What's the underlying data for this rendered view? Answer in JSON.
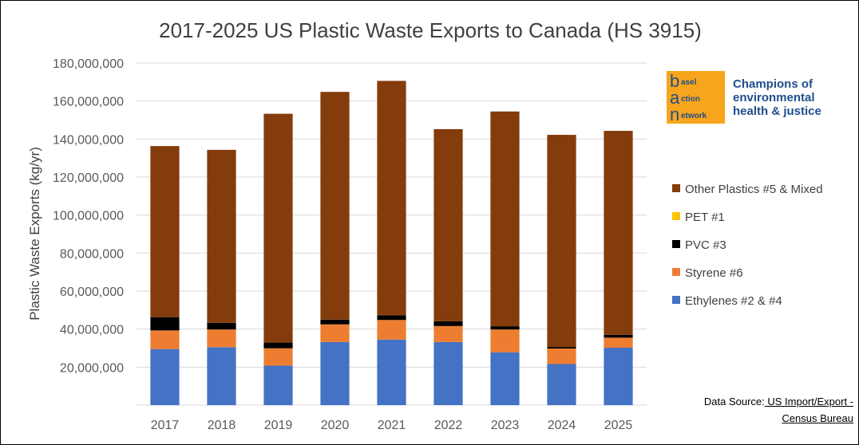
{
  "chart_data": {
    "type": "bar",
    "stacked": true,
    "title": "2017-2025 US Plastic Waste Exports to Canada (HS 3915)",
    "xlabel": "",
    "ylabel": "Plastic Waste Exports (kg/yr)",
    "ylim": [
      0,
      180000000
    ],
    "yticks": [
      "20,000,000",
      "40,000,000",
      "60,000,000",
      "80,000,000",
      "100,000,000",
      "120,000,000",
      "140,000,000",
      "160,000,000",
      "180,000,000"
    ],
    "ytick_values": [
      20000000,
      40000000,
      60000000,
      80000000,
      100000000,
      120000000,
      140000000,
      160000000,
      180000000
    ],
    "grid": true,
    "legend_position": "right",
    "categories": [
      "2017",
      "2018",
      "2019",
      "2020",
      "2021",
      "2022",
      "2023",
      "2024",
      "2025"
    ],
    "series": [
      {
        "name": "Ethylenes #2 & #4",
        "color": "#4472c4",
        "values": [
          29500000,
          30500000,
          20800000,
          33200000,
          34500000,
          33200000,
          27800000,
          21600000,
          30200000
        ]
      },
      {
        "name": "Styrene #6",
        "color": "#ed7d31",
        "values": [
          9800000,
          9300000,
          9100000,
          9300000,
          10300000,
          8400000,
          12000000,
          8200000,
          5300000
        ]
      },
      {
        "name": "PVC #3",
        "color": "#000000",
        "values": [
          7000000,
          3500000,
          3000000,
          2500000,
          2500000,
          2500000,
          1700000,
          800000,
          1500000
        ]
      },
      {
        "name": "PET #1",
        "color": "#ffc000",
        "values": [
          0,
          0,
          0,
          0,
          0,
          0,
          0,
          0,
          0
        ]
      },
      {
        "name": "Other Plastics #5 & Mixed",
        "color": "#843c0c",
        "values": [
          90000000,
          91000000,
          120400000,
          119800000,
          123300000,
          101100000,
          113000000,
          111600000,
          107300000
        ]
      }
    ],
    "legend_order": [
      "Other Plastics #5 & Mixed",
      "PET #1",
      "PVC #3",
      "Styrene #6",
      "Ethylenes #2 & #4"
    ],
    "gridline_color": "#d9d9d9"
  },
  "logo": {
    "letters": [
      "b",
      "a",
      "n"
    ],
    "words": [
      "asel",
      "ction",
      "etwork"
    ],
    "tagline": "Champions of environmental health & justice"
  },
  "source": {
    "label": "Data Source:",
    "link_text": " US Import/Export - Census Bureau"
  }
}
